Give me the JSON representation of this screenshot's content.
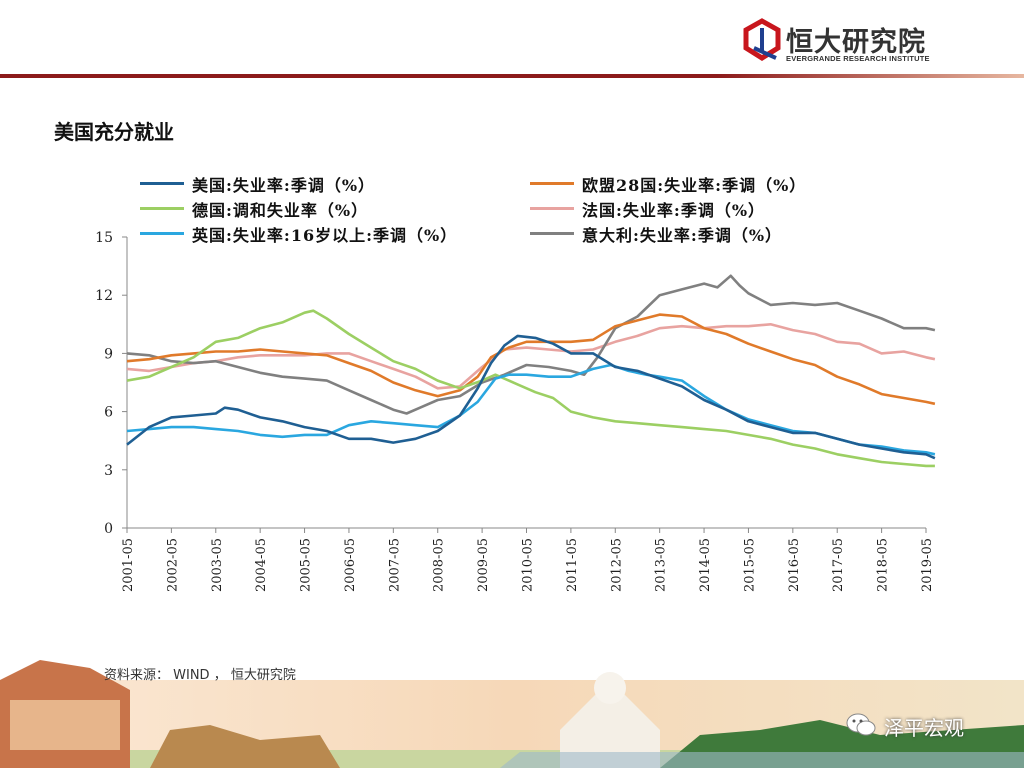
{
  "header": {
    "logo_cn": "恒大研究院",
    "logo_en": "EVERGRANDE RESEARCH INSTITUTE"
  },
  "page_title": "美国充分就业",
  "source": "资料来源： WIND ， 恒大研究院",
  "watermark": "泽平宏观",
  "colors": {
    "brand_red": "#8c1a1a",
    "us": "#1f5f93",
    "eu28": "#e07a2a",
    "de": "#9ccf63",
    "fr": "#e8a3a0",
    "uk": "#2aa7e0",
    "it": "#808080"
  },
  "chart_data": {
    "type": "line",
    "title": "",
    "xlabel": "",
    "ylabel": "",
    "ylim": [
      0,
      15
    ],
    "yticks": [
      0,
      3,
      6,
      9,
      12,
      15
    ],
    "grid": false,
    "legend_position": "top",
    "x_ticks": [
      "2001-05",
      "2002-05",
      "2003-05",
      "2004-05",
      "2005-05",
      "2006-05",
      "2007-05",
      "2008-05",
      "2009-05",
      "2010-05",
      "2011-05",
      "2012-05",
      "2013-05",
      "2014-05",
      "2015-05",
      "2016-05",
      "2017-05",
      "2018-05",
      "2019-05"
    ],
    "x_range": [
      "2001-05",
      "2019-05"
    ],
    "series": [
      {
        "name": "美国:失业率:季调（%）",
        "key": "us",
        "points": [
          [
            2001.0,
            4.3
          ],
          [
            2001.5,
            5.2
          ],
          [
            2002.0,
            5.7
          ],
          [
            2002.5,
            5.8
          ],
          [
            2003.0,
            5.9
          ],
          [
            2003.2,
            6.2
          ],
          [
            2003.5,
            6.1
          ],
          [
            2004.0,
            5.7
          ],
          [
            2004.5,
            5.5
          ],
          [
            2005.0,
            5.2
          ],
          [
            2005.5,
            5.0
          ],
          [
            2006.0,
            4.6
          ],
          [
            2006.5,
            4.6
          ],
          [
            2007.0,
            4.4
          ],
          [
            2007.5,
            4.6
          ],
          [
            2008.0,
            5.0
          ],
          [
            2008.5,
            5.8
          ],
          [
            2008.9,
            7.2
          ],
          [
            2009.2,
            8.5
          ],
          [
            2009.5,
            9.4
          ],
          [
            2009.8,
            9.9
          ],
          [
            2010.2,
            9.8
          ],
          [
            2010.6,
            9.5
          ],
          [
            2011.0,
            9.0
          ],
          [
            2011.5,
            9.0
          ],
          [
            2012.0,
            8.3
          ],
          [
            2012.5,
            8.1
          ],
          [
            2013.0,
            7.7
          ],
          [
            2013.5,
            7.3
          ],
          [
            2014.0,
            6.6
          ],
          [
            2014.5,
            6.1
          ],
          [
            2015.0,
            5.5
          ],
          [
            2015.5,
            5.2
          ],
          [
            2016.0,
            4.9
          ],
          [
            2016.5,
            4.9
          ],
          [
            2017.0,
            4.6
          ],
          [
            2017.5,
            4.3
          ],
          [
            2018.0,
            4.1
          ],
          [
            2018.5,
            3.9
          ],
          [
            2019.0,
            3.8
          ],
          [
            2019.2,
            3.6
          ]
        ]
      },
      {
        "name": "欧盟28国:失业率:季调（%）",
        "key": "eu28",
        "points": [
          [
            2001.0,
            8.6
          ],
          [
            2001.5,
            8.7
          ],
          [
            2002.0,
            8.9
          ],
          [
            2002.5,
            9.0
          ],
          [
            2003.0,
            9.1
          ],
          [
            2003.5,
            9.1
          ],
          [
            2004.0,
            9.2
          ],
          [
            2004.5,
            9.1
          ],
          [
            2005.0,
            9.0
          ],
          [
            2005.5,
            8.9
          ],
          [
            2006.0,
            8.5
          ],
          [
            2006.5,
            8.1
          ],
          [
            2007.0,
            7.5
          ],
          [
            2007.5,
            7.1
          ],
          [
            2008.0,
            6.8
          ],
          [
            2008.5,
            7.1
          ],
          [
            2008.9,
            7.8
          ],
          [
            2009.2,
            8.8
          ],
          [
            2009.6,
            9.3
          ],
          [
            2010.0,
            9.6
          ],
          [
            2010.5,
            9.6
          ],
          [
            2011.0,
            9.6
          ],
          [
            2011.5,
            9.7
          ],
          [
            2012.0,
            10.4
          ],
          [
            2012.5,
            10.7
          ],
          [
            2013.0,
            11.0
          ],
          [
            2013.5,
            10.9
          ],
          [
            2014.0,
            10.3
          ],
          [
            2014.5,
            10.0
          ],
          [
            2015.0,
            9.5
          ],
          [
            2015.5,
            9.1
          ],
          [
            2016.0,
            8.7
          ],
          [
            2016.5,
            8.4
          ],
          [
            2017.0,
            7.8
          ],
          [
            2017.5,
            7.4
          ],
          [
            2018.0,
            6.9
          ],
          [
            2018.5,
            6.7
          ],
          [
            2019.0,
            6.5
          ],
          [
            2019.2,
            6.4
          ]
        ]
      },
      {
        "name": "德国:调和失业率（%）",
        "key": "de",
        "points": [
          [
            2001.0,
            7.6
          ],
          [
            2001.5,
            7.8
          ],
          [
            2002.0,
            8.3
          ],
          [
            2002.5,
            8.8
          ],
          [
            2003.0,
            9.6
          ],
          [
            2003.5,
            9.8
          ],
          [
            2004.0,
            10.3
          ],
          [
            2004.5,
            10.6
          ],
          [
            2005.0,
            11.1
          ],
          [
            2005.2,
            11.2
          ],
          [
            2005.5,
            10.8
          ],
          [
            2006.0,
            10.0
          ],
          [
            2006.5,
            9.3
          ],
          [
            2007.0,
            8.6
          ],
          [
            2007.5,
            8.2
          ],
          [
            2008.0,
            7.6
          ],
          [
            2008.5,
            7.2
          ],
          [
            2009.0,
            7.6
          ],
          [
            2009.3,
            7.9
          ],
          [
            2009.8,
            7.4
          ],
          [
            2010.2,
            7.0
          ],
          [
            2010.6,
            6.7
          ],
          [
            2011.0,
            6.0
          ],
          [
            2011.5,
            5.7
          ],
          [
            2012.0,
            5.5
          ],
          [
            2012.5,
            5.4
          ],
          [
            2013.0,
            5.3
          ],
          [
            2013.5,
            5.2
          ],
          [
            2014.0,
            5.1
          ],
          [
            2014.5,
            5.0
          ],
          [
            2015.0,
            4.8
          ],
          [
            2015.5,
            4.6
          ],
          [
            2016.0,
            4.3
          ],
          [
            2016.5,
            4.1
          ],
          [
            2017.0,
            3.8
          ],
          [
            2017.5,
            3.6
          ],
          [
            2018.0,
            3.4
          ],
          [
            2018.5,
            3.3
          ],
          [
            2019.0,
            3.2
          ],
          [
            2019.2,
            3.2
          ]
        ]
      },
      {
        "name": "法国:失业率:季调（%）",
        "key": "fr",
        "points": [
          [
            2001.0,
            8.2
          ],
          [
            2001.5,
            8.1
          ],
          [
            2002.0,
            8.3
          ],
          [
            2002.5,
            8.5
          ],
          [
            2003.0,
            8.6
          ],
          [
            2003.5,
            8.8
          ],
          [
            2004.0,
            8.9
          ],
          [
            2004.5,
            8.9
          ],
          [
            2005.0,
            8.9
          ],
          [
            2005.5,
            9.0
          ],
          [
            2006.0,
            9.0
          ],
          [
            2006.5,
            8.6
          ],
          [
            2007.0,
            8.2
          ],
          [
            2007.5,
            7.8
          ],
          [
            2008.0,
            7.2
          ],
          [
            2008.5,
            7.3
          ],
          [
            2009.0,
            8.3
          ],
          [
            2009.5,
            9.2
          ],
          [
            2010.0,
            9.3
          ],
          [
            2010.5,
            9.2
          ],
          [
            2011.0,
            9.1
          ],
          [
            2011.5,
            9.2
          ],
          [
            2012.0,
            9.6
          ],
          [
            2012.5,
            9.9
          ],
          [
            2013.0,
            10.3
          ],
          [
            2013.5,
            10.4
          ],
          [
            2014.0,
            10.3
          ],
          [
            2014.5,
            10.4
          ],
          [
            2015.0,
            10.4
          ],
          [
            2015.5,
            10.5
          ],
          [
            2016.0,
            10.2
          ],
          [
            2016.5,
            10.0
          ],
          [
            2017.0,
            9.6
          ],
          [
            2017.5,
            9.5
          ],
          [
            2018.0,
            9.0
          ],
          [
            2018.5,
            9.1
          ],
          [
            2019.0,
            8.8
          ],
          [
            2019.2,
            8.7
          ]
        ]
      },
      {
        "name": "英国:失业率:16岁以上:季调（%）",
        "key": "uk",
        "points": [
          [
            2001.0,
            5.0
          ],
          [
            2001.5,
            5.1
          ],
          [
            2002.0,
            5.2
          ],
          [
            2002.5,
            5.2
          ],
          [
            2003.0,
            5.1
          ],
          [
            2003.5,
            5.0
          ],
          [
            2004.0,
            4.8
          ],
          [
            2004.5,
            4.7
          ],
          [
            2005.0,
            4.8
          ],
          [
            2005.5,
            4.8
          ],
          [
            2006.0,
            5.3
          ],
          [
            2006.5,
            5.5
          ],
          [
            2007.0,
            5.4
          ],
          [
            2007.5,
            5.3
          ],
          [
            2008.0,
            5.2
          ],
          [
            2008.5,
            5.8
          ],
          [
            2008.9,
            6.5
          ],
          [
            2009.3,
            7.7
          ],
          [
            2009.6,
            7.9
          ],
          [
            2010.0,
            7.9
          ],
          [
            2010.5,
            7.8
          ],
          [
            2011.0,
            7.8
          ],
          [
            2011.5,
            8.2
          ],
          [
            2011.9,
            8.4
          ],
          [
            2012.3,
            8.1
          ],
          [
            2012.7,
            7.9
          ],
          [
            2013.0,
            7.8
          ],
          [
            2013.5,
            7.6
          ],
          [
            2014.0,
            6.8
          ],
          [
            2014.5,
            6.1
          ],
          [
            2015.0,
            5.6
          ],
          [
            2015.5,
            5.3
          ],
          [
            2016.0,
            5.0
          ],
          [
            2016.5,
            4.9
          ],
          [
            2017.0,
            4.6
          ],
          [
            2017.5,
            4.3
          ],
          [
            2018.0,
            4.2
          ],
          [
            2018.5,
            4.0
          ],
          [
            2019.0,
            3.9
          ],
          [
            2019.2,
            3.8
          ]
        ]
      },
      {
        "name": "意大利:失业率:季调（%）",
        "key": "it",
        "points": [
          [
            2001.0,
            9.0
          ],
          [
            2001.5,
            8.9
          ],
          [
            2002.0,
            8.6
          ],
          [
            2002.5,
            8.5
          ],
          [
            2003.0,
            8.6
          ],
          [
            2003.5,
            8.3
          ],
          [
            2004.0,
            8.0
          ],
          [
            2004.5,
            7.8
          ],
          [
            2005.0,
            7.7
          ],
          [
            2005.5,
            7.6
          ],
          [
            2006.0,
            7.1
          ],
          [
            2006.5,
            6.6
          ],
          [
            2007.0,
            6.1
          ],
          [
            2007.3,
            5.9
          ],
          [
            2007.6,
            6.2
          ],
          [
            2008.0,
            6.6
          ],
          [
            2008.5,
            6.8
          ],
          [
            2009.0,
            7.5
          ],
          [
            2009.5,
            7.9
          ],
          [
            2010.0,
            8.4
          ],
          [
            2010.5,
            8.3
          ],
          [
            2011.0,
            8.1
          ],
          [
            2011.3,
            7.9
          ],
          [
            2011.6,
            8.8
          ],
          [
            2012.0,
            10.3
          ],
          [
            2012.5,
            10.9
          ],
          [
            2013.0,
            12.0
          ],
          [
            2013.5,
            12.3
          ],
          [
            2014.0,
            12.6
          ],
          [
            2014.3,
            12.4
          ],
          [
            2014.6,
            13.0
          ],
          [
            2014.8,
            12.5
          ],
          [
            2015.0,
            12.1
          ],
          [
            2015.5,
            11.5
          ],
          [
            2016.0,
            11.6
          ],
          [
            2016.5,
            11.5
          ],
          [
            2017.0,
            11.6
          ],
          [
            2017.5,
            11.2
          ],
          [
            2018.0,
            10.8
          ],
          [
            2018.5,
            10.3
          ],
          [
            2019.0,
            10.3
          ],
          [
            2019.2,
            10.2
          ]
        ]
      }
    ]
  }
}
